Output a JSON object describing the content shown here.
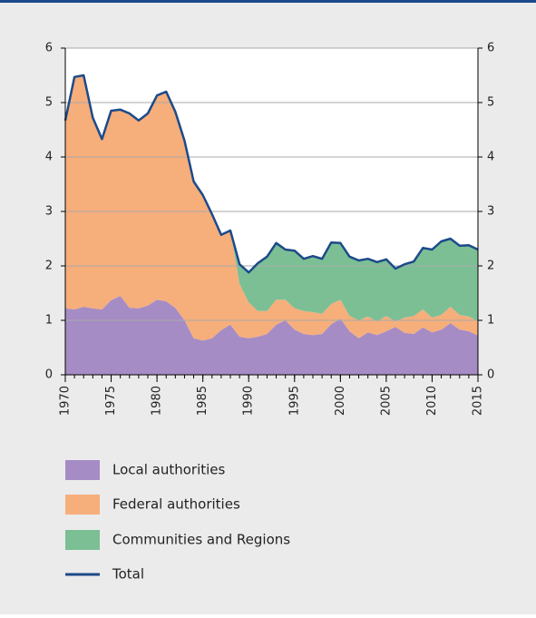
{
  "chart_data": {
    "type": "stacked_area",
    "x": [
      1970,
      1971,
      1972,
      1973,
      1974,
      1975,
      1976,
      1977,
      1978,
      1979,
      1980,
      1981,
      1982,
      1983,
      1984,
      1985,
      1986,
      1987,
      1988,
      1989,
      1990,
      1991,
      1992,
      1993,
      1994,
      1995,
      1996,
      1997,
      1998,
      1999,
      2000,
      2001,
      2002,
      2003,
      2004,
      2005,
      2006,
      2007,
      2008,
      2009,
      2010,
      2011,
      2012,
      2013,
      2014,
      2015
    ],
    "xlim": [
      1970,
      2015
    ],
    "xticks": [
      1970,
      1975,
      1980,
      1985,
      1990,
      1995,
      2000,
      2005,
      2010,
      2015
    ],
    "ylim": [
      0,
      6
    ],
    "yticks": [
      0,
      1,
      2,
      3,
      4,
      5,
      6
    ],
    "y2lim": [
      0,
      6
    ],
    "y2ticks": [
      0,
      1,
      2,
      3,
      4,
      5,
      6
    ],
    "grid": true,
    "series": [
      {
        "name": "Local authorities",
        "color": "#a68cc5",
        "values": [
          1.22,
          1.2,
          1.25,
          1.22,
          1.2,
          1.37,
          1.45,
          1.23,
          1.22,
          1.27,
          1.38,
          1.35,
          1.23,
          1.0,
          0.67,
          0.63,
          0.67,
          0.82,
          0.92,
          0.7,
          0.67,
          0.7,
          0.75,
          0.92,
          1.0,
          0.83,
          0.75,
          0.73,
          0.75,
          0.93,
          1.03,
          0.8,
          0.67,
          0.78,
          0.73,
          0.8,
          0.88,
          0.77,
          0.75,
          0.87,
          0.78,
          0.83,
          0.95,
          0.83,
          0.8,
          0.72
        ]
      },
      {
        "name": "Federal authorities",
        "color": "#f6ae7b",
        "values": [
          3.45,
          4.27,
          4.25,
          3.5,
          3.13,
          3.48,
          3.42,
          3.57,
          3.45,
          3.53,
          3.75,
          3.85,
          3.6,
          3.3,
          2.88,
          2.67,
          2.28,
          1.75,
          1.73,
          0.97,
          0.66,
          0.47,
          0.42,
          0.46,
          0.38,
          0.39,
          0.42,
          0.42,
          0.37,
          0.37,
          0.35,
          0.28,
          0.33,
          0.29,
          0.25,
          0.28,
          0.1,
          0.28,
          0.33,
          0.33,
          0.27,
          0.27,
          0.3,
          0.27,
          0.27,
          0.26
        ]
      },
      {
        "name": "Communities and Regions",
        "color": "#7cbf95",
        "values": [
          0,
          0,
          0,
          0,
          0,
          0,
          0,
          0,
          0,
          0,
          0,
          0,
          0,
          0,
          0,
          0,
          0,
          0,
          0,
          0.36,
          0.55,
          0.88,
          1.0,
          1.04,
          0.92,
          1.06,
          0.96,
          1.03,
          1.01,
          1.13,
          1.04,
          1.09,
          1.1,
          1.06,
          1.09,
          1.04,
          0.97,
          0.98,
          1.0,
          1.13,
          1.25,
          1.35,
          1.25,
          1.27,
          1.31,
          1.32
        ]
      },
      {
        "name": "Total",
        "color": "#1d4a8a",
        "line": true,
        "values": [
          4.67,
          5.47,
          5.5,
          4.72,
          4.33,
          4.85,
          4.87,
          4.8,
          4.67,
          4.8,
          5.13,
          5.2,
          4.83,
          4.3,
          3.55,
          3.3,
          2.95,
          2.57,
          2.65,
          2.03,
          1.88,
          2.05,
          2.17,
          2.42,
          2.3,
          2.28,
          2.13,
          2.18,
          2.13,
          2.43,
          2.42,
          2.17,
          2.1,
          2.13,
          2.07,
          2.12,
          1.95,
          2.03,
          2.08,
          2.33,
          2.3,
          2.45,
          2.5,
          2.37,
          2.38,
          2.3
        ]
      }
    ]
  }
}
